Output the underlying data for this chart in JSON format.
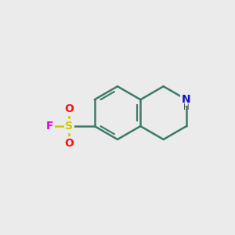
{
  "bg_color": "#ebebeb",
  "bond_color": "#3d7a6a",
  "s_color": "#cccc00",
  "o_color": "#ff1111",
  "n_color": "#1111cc",
  "f_color": "#dd00dd",
  "h_color": "#555555",
  "line_width": 1.8,
  "fig_bg": "#ebebeb",
  "xlim": [
    0,
    10
  ],
  "ylim": [
    0,
    10
  ]
}
